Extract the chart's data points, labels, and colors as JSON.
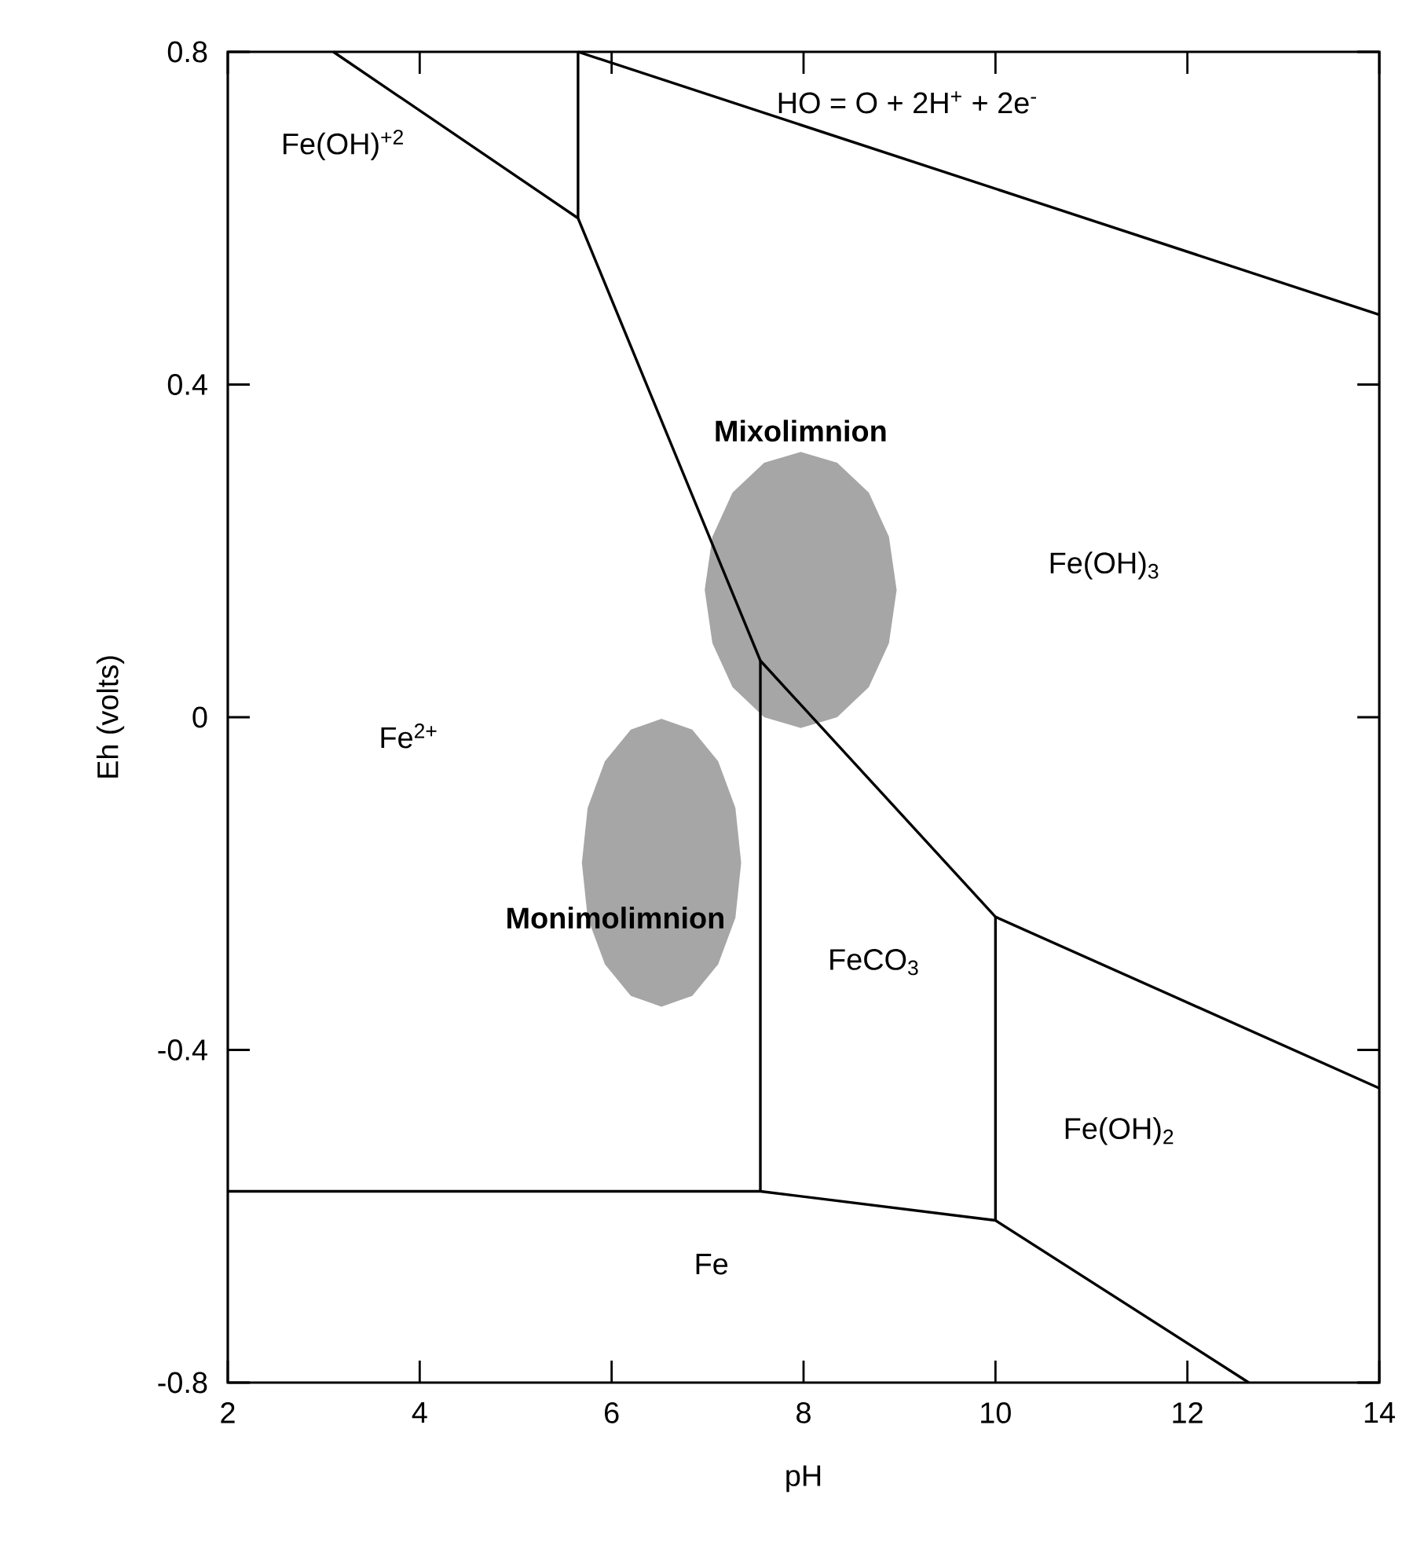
{
  "chart_data": {
    "type": "line",
    "xlabel": "pH",
    "ylabel": "Eh (volts)",
    "xlim": [
      2,
      14
    ],
    "ylim": [
      -0.8,
      0.8
    ],
    "xticks": [
      2,
      4,
      6,
      8,
      10,
      12,
      14
    ],
    "yticks": [
      -0.8,
      -0.4,
      0,
      0.4,
      0.8
    ],
    "series": [
      {
        "type": "area",
        "name": "Mixolimnion",
        "color": "#a6a6a6",
        "x": [
          7.97,
          8.35,
          8.68,
          8.89,
          8.97,
          8.89,
          8.68,
          8.35,
          7.97,
          7.59,
          7.26,
          7.05,
          6.97,
          7.05,
          7.26,
          7.59
        ],
        "values": [
          0.319,
          0.306,
          0.27,
          0.217,
          0.153,
          0.089,
          0.036,
          0.0,
          -0.013,
          0.0,
          0.036,
          0.089,
          0.153,
          0.217,
          0.27,
          0.306
        ]
      },
      {
        "type": "area",
        "name": "Monimolimnion",
        "color": "#a6a6a6",
        "x": [
          7.29,
          7.35,
          7.29,
          7.11,
          6.84,
          6.52,
          6.2,
          5.93,
          5.75,
          5.69,
          5.75,
          5.93,
          6.2,
          6.52,
          6.84,
          7.11
        ],
        "values": [
          -0.241,
          -0.175,
          -0.109,
          -0.053,
          -0.015,
          -0.002,
          -0.015,
          -0.053,
          -0.109,
          -0.175,
          -0.241,
          -0.297,
          -0.335,
          -0.348,
          -0.335,
          -0.297
        ]
      },
      {
        "color": "#000000",
        "x": [
          5.65,
          14
        ],
        "values": [
          0.8,
          0.484
        ]
      },
      {
        "color": "#000000",
        "x": [
          3.1,
          5.65,
          7.55,
          10.0,
          14
        ],
        "values": [
          0.8,
          0.6,
          0.068,
          -0.24,
          -0.446
        ]
      },
      {
        "color": "#000000",
        "x": [
          5.65,
          5.65
        ],
        "values": [
          0.6,
          0.8
        ]
      },
      {
        "color": "#000000",
        "x": [
          7.55,
          7.55
        ],
        "values": [
          0.068,
          -0.57
        ]
      },
      {
        "color": "#000000",
        "x": [
          10.0,
          10.0
        ],
        "values": [
          -0.24,
          -0.605
        ]
      },
      {
        "color": "#000000",
        "x": [
          2,
          7.55,
          10.0,
          12.64
        ],
        "values": [
          -0.57,
          -0.57,
          -0.605,
          -0.8
        ]
      }
    ],
    "annotations": [
      "Fe(OH)$^{+2}$",
      "HO = O + 2H$^{+}$ + 2e$^{-}$",
      "Fe(OH)$_{3}$",
      "Fe$^{2+}$",
      "FeCO$_{3}$",
      "Fe(OH)$_{2}$",
      "Fe"
    ]
  }
}
